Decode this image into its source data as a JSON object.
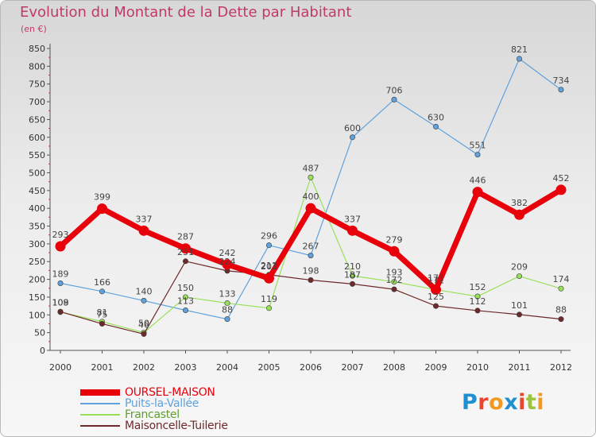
{
  "title": "Evolution du Montant de la Dette par Habitant",
  "subtitle": "(en €)",
  "logo": {
    "text": "Proxiti",
    "colors": [
      "#1f8fcf",
      "#e8472f",
      "#f29a1d",
      "#1f8fcf",
      "#e8472f",
      "#9ac43b",
      "#f29a1d"
    ]
  },
  "chart_data": {
    "type": "line",
    "title": "Evolution du Montant de la Dette par Habitant",
    "ylabel": "(en €)",
    "x": [
      "2000",
      "2001",
      "2002",
      "2003",
      "2004",
      "2005",
      "2006",
      "2007",
      "2008",
      "2009",
      "2010",
      "2011",
      "2012"
    ],
    "ylim": [
      0,
      850
    ],
    "yticks": [
      0,
      50,
      100,
      150,
      200,
      250,
      300,
      350,
      400,
      450,
      500,
      550,
      600,
      650,
      700,
      750,
      800,
      850
    ],
    "grid": false,
    "legend_position": "bottom-left",
    "series": [
      {
        "name": "OURSEL-MAISON",
        "color": "#e8000b",
        "values": [
          293,
          399,
          337,
          287,
          242,
          203,
          400,
          337,
          279,
          171,
          446,
          382,
          452
        ]
      },
      {
        "name": "Puits-la-Vallée",
        "color": "#5fa2dd",
        "values": [
          189,
          166,
          140,
          113,
          88,
          296,
          267,
          600,
          706,
          630,
          551,
          821,
          734
        ]
      },
      {
        "name": "Francastel",
        "color": "#99e05a",
        "values": [
          108,
          81,
          50,
          150,
          133,
          119,
          487,
          210,
          193,
          171,
          152,
          209,
          174
        ]
      },
      {
        "name": "Maisoncelle-Tuilerie",
        "color": "#6e2a2a",
        "values": [
          109,
          75,
          46,
          251,
          224,
          213,
          198,
          187,
          172,
          125,
          112,
          101,
          88
        ]
      }
    ]
  }
}
